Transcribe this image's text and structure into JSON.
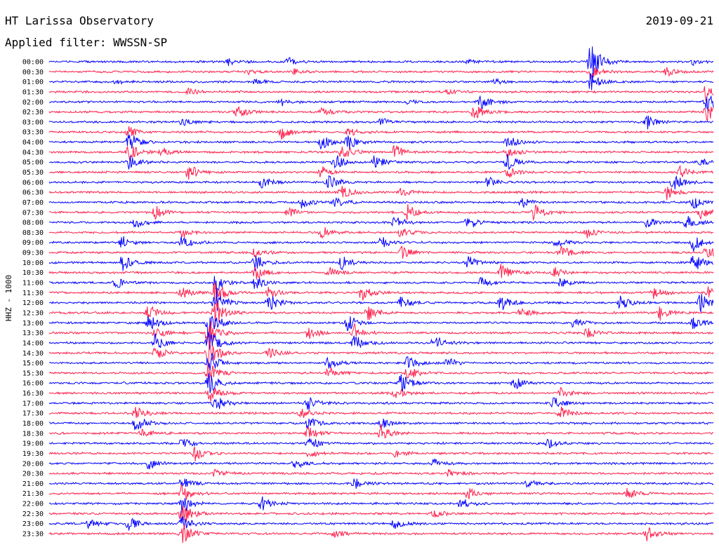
{
  "header": {
    "title": "HT Larissa Observatory",
    "date": "2019-09-21",
    "filter_label": "Applied filter: WWSSN-SP"
  },
  "chart_data": {
    "type": "line",
    "title": "HT Larissa Observatory",
    "ylabel": "HHZ - 1000",
    "colors": [
      "#0000ff",
      "#ff1f4b"
    ],
    "traces": [
      {
        "time": "00:00",
        "bursts": [
          {
            "t": 0.27,
            "a": 5
          },
          {
            "t": 0.36,
            "a": 6
          },
          {
            "t": 0.63,
            "a": 4
          },
          {
            "t": 0.815,
            "a": 34
          },
          {
            "t": 0.97,
            "a": 4
          }
        ]
      },
      {
        "time": "00:30",
        "bursts": [
          {
            "t": 0.3,
            "a": 3
          },
          {
            "t": 0.37,
            "a": 5
          },
          {
            "t": 0.815,
            "a": 12
          },
          {
            "t": 0.93,
            "a": 6
          }
        ]
      },
      {
        "time": "01:00",
        "bursts": [
          {
            "t": 0.1,
            "a": 3
          },
          {
            "t": 0.31,
            "a": 4
          },
          {
            "t": 0.67,
            "a": 4
          },
          {
            "t": 0.815,
            "a": 14
          }
        ]
      },
      {
        "time": "01:30",
        "bursts": [
          {
            "t": 0.21,
            "a": 5
          },
          {
            "t": 0.6,
            "a": 4
          },
          {
            "t": 0.99,
            "a": 16
          }
        ]
      },
      {
        "time": "02:00",
        "bursts": [
          {
            "t": 0.35,
            "a": 5
          },
          {
            "t": 0.54,
            "a": 4
          },
          {
            "t": 0.65,
            "a": 12
          },
          {
            "t": 0.99,
            "a": 18
          }
        ]
      },
      {
        "time": "02:30",
        "bursts": [
          {
            "t": 0.28,
            "a": 12
          },
          {
            "t": 0.41,
            "a": 6
          },
          {
            "t": 0.64,
            "a": 12
          },
          {
            "t": 0.99,
            "a": 14
          }
        ]
      },
      {
        "time": "03:00",
        "bursts": [
          {
            "t": 0.2,
            "a": 6
          },
          {
            "t": 0.5,
            "a": 5
          },
          {
            "t": 0.9,
            "a": 10
          }
        ]
      },
      {
        "time": "03:30",
        "bursts": [
          {
            "t": 0.12,
            "a": 8
          },
          {
            "t": 0.35,
            "a": 10
          },
          {
            "t": 0.45,
            "a": 8
          }
        ]
      },
      {
        "time": "04:00",
        "bursts": [
          {
            "t": 0.12,
            "a": 16
          },
          {
            "t": 0.41,
            "a": 12
          },
          {
            "t": 0.45,
            "a": 12
          },
          {
            "t": 0.69,
            "a": 10
          }
        ]
      },
      {
        "time": "04:30",
        "bursts": [
          {
            "t": 0.12,
            "a": 14
          },
          {
            "t": 0.17,
            "a": 6
          },
          {
            "t": 0.44,
            "a": 14
          },
          {
            "t": 0.52,
            "a": 12
          },
          {
            "t": 0.69,
            "a": 10
          }
        ]
      },
      {
        "time": "05:00",
        "bursts": [
          {
            "t": 0.12,
            "a": 10
          },
          {
            "t": 0.43,
            "a": 12
          },
          {
            "t": 0.49,
            "a": 10
          },
          {
            "t": 0.69,
            "a": 12
          },
          {
            "t": 0.98,
            "a": 6
          }
        ]
      },
      {
        "time": "05:30",
        "bursts": [
          {
            "t": 0.21,
            "a": 12
          },
          {
            "t": 0.41,
            "a": 10
          },
          {
            "t": 0.69,
            "a": 10
          },
          {
            "t": 0.95,
            "a": 8
          }
        ]
      },
      {
        "time": "06:00",
        "bursts": [
          {
            "t": 0.32,
            "a": 10
          },
          {
            "t": 0.42,
            "a": 12
          },
          {
            "t": 0.66,
            "a": 8
          },
          {
            "t": 0.94,
            "a": 12
          }
        ]
      },
      {
        "time": "06:30",
        "bursts": [
          {
            "t": 0.44,
            "a": 10
          },
          {
            "t": 0.53,
            "a": 8
          },
          {
            "t": 0.93,
            "a": 10
          }
        ]
      },
      {
        "time": "07:00",
        "bursts": [
          {
            "t": 0.38,
            "a": 8
          },
          {
            "t": 0.43,
            "a": 8
          },
          {
            "t": 0.71,
            "a": 8
          },
          {
            "t": 0.97,
            "a": 10
          }
        ]
      },
      {
        "time": "07:30",
        "bursts": [
          {
            "t": 0.16,
            "a": 10
          },
          {
            "t": 0.36,
            "a": 8
          },
          {
            "t": 0.54,
            "a": 12
          },
          {
            "t": 0.73,
            "a": 12
          },
          {
            "t": 0.98,
            "a": 10
          }
        ]
      },
      {
        "time": "08:00",
        "bursts": [
          {
            "t": 0.13,
            "a": 8
          },
          {
            "t": 0.52,
            "a": 10
          },
          {
            "t": 0.63,
            "a": 12
          },
          {
            "t": 0.9,
            "a": 8
          },
          {
            "t": 0.96,
            "a": 10
          }
        ]
      },
      {
        "time": "08:30",
        "bursts": [
          {
            "t": 0.2,
            "a": 8
          },
          {
            "t": 0.41,
            "a": 10
          },
          {
            "t": 0.53,
            "a": 8
          },
          {
            "t": 0.81,
            "a": 8
          }
        ]
      },
      {
        "time": "09:00",
        "bursts": [
          {
            "t": 0.11,
            "a": 10
          },
          {
            "t": 0.2,
            "a": 10
          },
          {
            "t": 0.5,
            "a": 8
          },
          {
            "t": 0.76,
            "a": 8
          },
          {
            "t": 0.97,
            "a": 12
          }
        ]
      },
      {
        "time": "09:30",
        "bursts": [
          {
            "t": 0.31,
            "a": 8
          },
          {
            "t": 0.53,
            "a": 10
          },
          {
            "t": 0.77,
            "a": 12
          },
          {
            "t": 0.99,
            "a": 14
          }
        ]
      },
      {
        "time": "10:00",
        "bursts": [
          {
            "t": 0.11,
            "a": 12
          },
          {
            "t": 0.31,
            "a": 12
          },
          {
            "t": 0.44,
            "a": 10
          },
          {
            "t": 0.63,
            "a": 10
          },
          {
            "t": 0.97,
            "a": 14
          }
        ]
      },
      {
        "time": "10:30",
        "bursts": [
          {
            "t": 0.31,
            "a": 12
          },
          {
            "t": 0.42,
            "a": 10
          },
          {
            "t": 0.68,
            "a": 14
          },
          {
            "t": 0.76,
            "a": 8
          }
        ]
      },
      {
        "time": "11:00",
        "bursts": [
          {
            "t": 0.1,
            "a": 10
          },
          {
            "t": 0.25,
            "a": 14
          },
          {
            "t": 0.31,
            "a": 10
          },
          {
            "t": 0.65,
            "a": 8
          },
          {
            "t": 0.77,
            "a": 10
          }
        ]
      },
      {
        "time": "11:30",
        "bursts": [
          {
            "t": 0.2,
            "a": 10
          },
          {
            "t": 0.25,
            "a": 20
          },
          {
            "t": 0.33,
            "a": 10
          },
          {
            "t": 0.47,
            "a": 12
          },
          {
            "t": 0.91,
            "a": 10
          },
          {
            "t": 0.99,
            "a": 10
          }
        ]
      },
      {
        "time": "12:00",
        "bursts": [
          {
            "t": 0.25,
            "a": 22
          },
          {
            "t": 0.33,
            "a": 14
          },
          {
            "t": 0.53,
            "a": 10
          },
          {
            "t": 0.68,
            "a": 12
          },
          {
            "t": 0.86,
            "a": 10
          },
          {
            "t": 0.98,
            "a": 14
          }
        ]
      },
      {
        "time": "12:30",
        "bursts": [
          {
            "t": 0.15,
            "a": 12
          },
          {
            "t": 0.25,
            "a": 22
          },
          {
            "t": 0.48,
            "a": 12
          },
          {
            "t": 0.71,
            "a": 8
          },
          {
            "t": 0.92,
            "a": 10
          }
        ]
      },
      {
        "time": "13:00",
        "bursts": [
          {
            "t": 0.15,
            "a": 12
          },
          {
            "t": 0.24,
            "a": 26
          },
          {
            "t": 0.45,
            "a": 12
          },
          {
            "t": 0.79,
            "a": 8
          },
          {
            "t": 0.97,
            "a": 10
          }
        ]
      },
      {
        "time": "13:30",
        "bursts": [
          {
            "t": 0.16,
            "a": 10
          },
          {
            "t": 0.24,
            "a": 26
          },
          {
            "t": 0.39,
            "a": 10
          },
          {
            "t": 0.46,
            "a": 12
          },
          {
            "t": 0.81,
            "a": 8
          }
        ]
      },
      {
        "time": "14:00",
        "bursts": [
          {
            "t": 0.16,
            "a": 12
          },
          {
            "t": 0.24,
            "a": 26
          },
          {
            "t": 0.46,
            "a": 12
          },
          {
            "t": 0.58,
            "a": 12
          }
        ]
      },
      {
        "time": "14:30",
        "bursts": [
          {
            "t": 0.16,
            "a": 10
          },
          {
            "t": 0.24,
            "a": 24
          },
          {
            "t": 0.33,
            "a": 8
          }
        ]
      },
      {
        "time": "15:00",
        "bursts": [
          {
            "t": 0.24,
            "a": 22
          },
          {
            "t": 0.42,
            "a": 8
          },
          {
            "t": 0.54,
            "a": 10
          },
          {
            "t": 0.6,
            "a": 8
          }
        ]
      },
      {
        "time": "15:30",
        "bursts": [
          {
            "t": 0.24,
            "a": 18
          },
          {
            "t": 0.42,
            "a": 10
          },
          {
            "t": 0.54,
            "a": 12
          }
        ]
      },
      {
        "time": "16:00",
        "bursts": [
          {
            "t": 0.24,
            "a": 16
          },
          {
            "t": 0.53,
            "a": 14
          },
          {
            "t": 0.7,
            "a": 10
          }
        ]
      },
      {
        "time": "16:30",
        "bursts": [
          {
            "t": 0.24,
            "a": 14
          },
          {
            "t": 0.52,
            "a": 8
          },
          {
            "t": 0.77,
            "a": 8
          }
        ]
      },
      {
        "time": "17:00",
        "bursts": [
          {
            "t": 0.25,
            "a": 12
          },
          {
            "t": 0.39,
            "a": 10
          },
          {
            "t": 0.76,
            "a": 10
          }
        ]
      },
      {
        "time": "17:30",
        "bursts": [
          {
            "t": 0.13,
            "a": 10
          },
          {
            "t": 0.38,
            "a": 8
          },
          {
            "t": 0.77,
            "a": 10
          }
        ]
      },
      {
        "time": "18:00",
        "bursts": [
          {
            "t": 0.13,
            "a": 14
          },
          {
            "t": 0.39,
            "a": 10
          },
          {
            "t": 0.5,
            "a": 8
          }
        ]
      },
      {
        "time": "18:30",
        "bursts": [
          {
            "t": 0.14,
            "a": 8
          },
          {
            "t": 0.39,
            "a": 10
          },
          {
            "t": 0.5,
            "a": 12
          }
        ]
      },
      {
        "time": "19:00",
        "bursts": [
          {
            "t": 0.2,
            "a": 8
          },
          {
            "t": 0.39,
            "a": 12
          },
          {
            "t": 0.75,
            "a": 8
          }
        ]
      },
      {
        "time": "19:30",
        "bursts": [
          {
            "t": 0.22,
            "a": 12
          },
          {
            "t": 0.39,
            "a": 8
          },
          {
            "t": 0.52,
            "a": 6
          }
        ]
      },
      {
        "time": "20:00",
        "bursts": [
          {
            "t": 0.15,
            "a": 8
          },
          {
            "t": 0.37,
            "a": 8
          },
          {
            "t": 0.58,
            "a": 6
          }
        ]
      },
      {
        "time": "20:30",
        "bursts": [
          {
            "t": 0.25,
            "a": 6
          },
          {
            "t": 0.6,
            "a": 6
          }
        ]
      },
      {
        "time": "21:00",
        "bursts": [
          {
            "t": 0.2,
            "a": 10
          },
          {
            "t": 0.46,
            "a": 8
          },
          {
            "t": 0.72,
            "a": 6
          }
        ]
      },
      {
        "time": "21:30",
        "bursts": [
          {
            "t": 0.2,
            "a": 14
          },
          {
            "t": 0.63,
            "a": 8
          },
          {
            "t": 0.87,
            "a": 10
          }
        ]
      },
      {
        "time": "22:00",
        "bursts": [
          {
            "t": 0.2,
            "a": 18
          },
          {
            "t": 0.32,
            "a": 12
          },
          {
            "t": 0.62,
            "a": 8
          }
        ]
      },
      {
        "time": "22:30",
        "bursts": [
          {
            "t": 0.2,
            "a": 20
          },
          {
            "t": 0.58,
            "a": 6
          }
        ]
      },
      {
        "time": "23:00",
        "bursts": [
          {
            "t": 0.06,
            "a": 8
          },
          {
            "t": 0.12,
            "a": 10
          },
          {
            "t": 0.2,
            "a": 12
          },
          {
            "t": 0.52,
            "a": 8
          }
        ]
      },
      {
        "time": "23:30",
        "bursts": [
          {
            "t": 0.2,
            "a": 16
          },
          {
            "t": 0.43,
            "a": 6
          },
          {
            "t": 0.9,
            "a": 14
          }
        ]
      }
    ]
  }
}
